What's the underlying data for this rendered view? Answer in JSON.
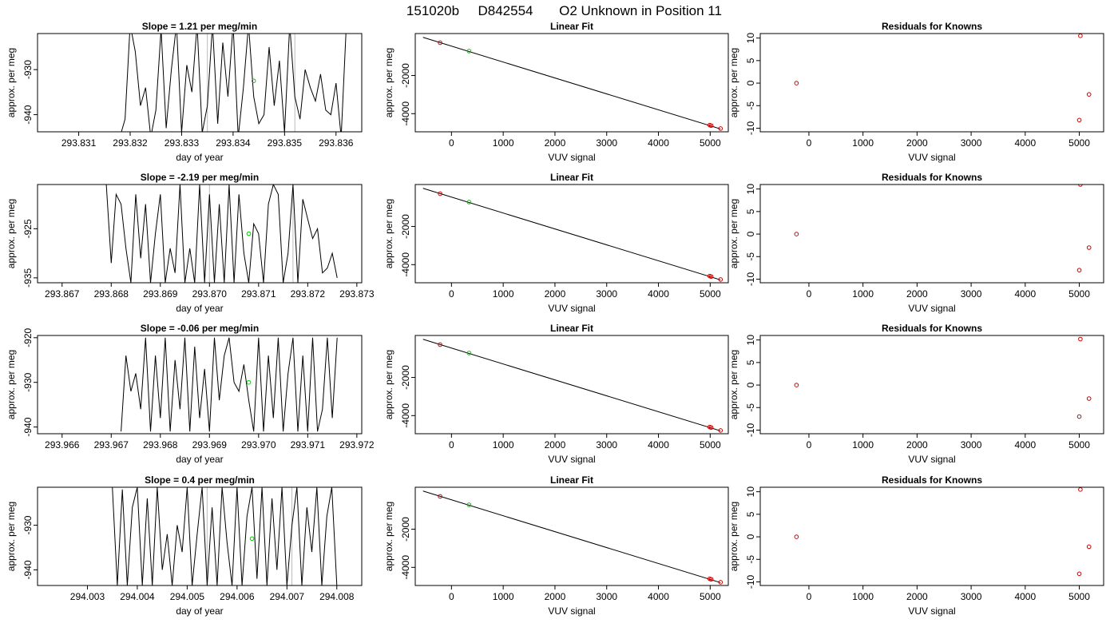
{
  "figure": {
    "title_parts": [
      "151020b",
      "D842554",
      "O2 Unknown in Position  11"
    ]
  },
  "chart_data": [
    {
      "type": "line",
      "title": "Slope =  1.21  per meg/min",
      "xlabel": "day of year",
      "ylabel": "approx. per meg",
      "xlim": [
        293.8302,
        293.8365
      ],
      "ylim": [
        -943.8,
        -922
      ],
      "xticks": [
        293.831,
        293.832,
        293.833,
        293.834,
        293.835,
        293.836
      ],
      "xtick_labels": [
        "293.831",
        "293.832",
        "293.833",
        "293.834",
        "293.835",
        "293.836"
      ],
      "yticks": [
        -930,
        -940
      ],
      "ytick_labels": [
        "-930",
        "-940"
      ],
      "vlines": [
        293.8335,
        293.8352
      ],
      "series": [
        {
          "x": [
            293.8318,
            293.8319,
            293.832,
            293.8321,
            293.8322,
            293.8323,
            293.8324,
            293.8325,
            293.8326,
            293.8327,
            293.8328,
            293.8329,
            293.833,
            293.8331,
            293.8332,
            293.8333,
            293.8334,
            293.8335,
            293.8336,
            293.8337,
            293.8338,
            293.8339,
            293.834,
            293.8341,
            293.8342,
            293.8343,
            293.8344,
            293.8345,
            293.8346,
            293.8347,
            293.8348,
            293.8349,
            293.835,
            293.8351,
            293.8352,
            293.8353,
            293.8354,
            293.8355,
            293.8356,
            293.8357,
            293.8358,
            293.8359,
            293.836,
            293.8361,
            293.8362
          ],
          "y": [
            -945,
            -941,
            -920,
            -926,
            -938,
            -934,
            -945,
            -939,
            -921,
            -943,
            -930,
            -920,
            -944,
            -929,
            -935,
            -920,
            -944,
            -938,
            -920,
            -942,
            -924,
            -936,
            -920,
            -945,
            -934,
            -920,
            -936,
            -942,
            -940,
            -925,
            -938,
            -928,
            -944,
            -920,
            -936,
            -941,
            -930,
            -934,
            -937,
            -931,
            -939,
            -940,
            -933,
            -945,
            -920
          ]
        },
        {
          "x": [
            293.8344
          ],
          "y": [
            -932.5
          ]
        }
      ]
    },
    {
      "type": "scatter",
      "title": "Linear Fit",
      "xlabel": "VUV signal",
      "ylabel": "approx. per meg",
      "xlim": [
        -700,
        5350
      ],
      "ylim": [
        -4950,
        200
      ],
      "xticks": [
        0,
        1000,
        2000,
        3000,
        4000,
        5000
      ],
      "xtick_labels": [
        "0",
        "1000",
        "2000",
        "3000",
        "4000",
        "5000"
      ],
      "yticks": [
        -2000,
        -4000
      ],
      "ytick_labels": [
        "-2000",
        "-4000"
      ],
      "fit_line": [
        [
          -550,
          0
        ],
        [
          5200,
          -4800
        ]
      ],
      "series": [
        {
          "x": [
            -220,
            4990,
            5020,
            5200
          ],
          "y": [
            -280,
            -4600,
            -4625,
            -4780
          ]
        },
        {
          "x": [
            340
          ],
          "y": [
            -720
          ]
        }
      ]
    },
    {
      "type": "scatter",
      "title": "Residuals for Knowns",
      "xlabel": "VUV signal",
      "ylabel": "",
      "xlim": [
        -900,
        5450
      ],
      "ylim": [
        -10.8,
        11
      ],
      "xticks": [
        0,
        1000,
        2000,
        3000,
        4000,
        5000
      ],
      "xtick_labels": [
        "0",
        "1000",
        "2000",
        "3000",
        "4000",
        "5000"
      ],
      "yticks": [
        10,
        5,
        0,
        -5,
        -10
      ],
      "ytick_labels": [
        "10",
        "5",
        "0",
        "-5",
        "-10"
      ],
      "series": [
        {
          "x": [
            -230,
            5020,
            5000,
            5180
          ],
          "y": [
            0,
            10.5,
            -8.2,
            -2.5
          ]
        }
      ]
    },
    {
      "type": "line",
      "title": "Slope =  -2.19  per meg/min",
      "xlabel": "day of year",
      "ylabel": "approx. per meg",
      "xlim": [
        293.8665,
        293.8731
      ],
      "ylim": [
        -936,
        -916
      ],
      "xticks": [
        293.867,
        293.868,
        293.869,
        293.87,
        293.871,
        293.872,
        293.873
      ],
      "xtick_labels": [
        "293.867",
        "293.868",
        "293.869",
        "293.870",
        "293.871",
        "293.872",
        "293.873"
      ],
      "yticks": [
        -925,
        -935
      ],
      "ytick_labels": [
        "-925",
        "-935"
      ],
      "vlines": [
        293.87,
        293.8717
      ],
      "series": [
        {
          "x": [
            293.8679,
            293.868,
            293.8681,
            293.8682,
            293.8683,
            293.8684,
            293.8685,
            293.8686,
            293.8687,
            293.8688,
            293.8689,
            293.869,
            293.8691,
            293.8692,
            293.8693,
            293.8694,
            293.8695,
            293.8696,
            293.8697,
            293.8698,
            293.8699,
            293.87,
            293.8701,
            293.8702,
            293.8703,
            293.8704,
            293.8705,
            293.8706,
            293.8707,
            293.8708,
            293.8709,
            293.871,
            293.8711,
            293.8712,
            293.8713,
            293.8714,
            293.8715,
            293.8716,
            293.8717,
            293.8718,
            293.8719,
            293.872,
            293.8721,
            293.8722,
            293.8723,
            293.8724,
            293.8725,
            293.8726
          ],
          "y": [
            -916,
            -932,
            -918,
            -920,
            -929,
            -936,
            -918,
            -931,
            -920,
            -936,
            -926,
            -918,
            -936,
            -929,
            -934,
            -916,
            -936,
            -929,
            -936,
            -916,
            -936,
            -918,
            -936,
            -920,
            -936,
            -916,
            -936,
            -918,
            -930,
            -936,
            -924,
            -926,
            -936,
            -920,
            -916,
            -918,
            -936,
            -930,
            -916,
            -936,
            -919,
            -923,
            -927,
            -925,
            -934,
            -933,
            -930,
            -935
          ]
        },
        {
          "x": [
            293.8708
          ],
          "y": [
            -926
          ]
        }
      ]
    },
    {
      "type": "scatter",
      "title": "Linear Fit",
      "xlabel": "VUV signal",
      "ylabel": "approx. per meg",
      "xlim": [
        -700,
        5350
      ],
      "ylim": [
        -4950,
        200
      ],
      "xticks": [
        0,
        1000,
        2000,
        3000,
        4000,
        5000
      ],
      "xtick_labels": [
        "0",
        "1000",
        "2000",
        "3000",
        "4000",
        "5000"
      ],
      "yticks": [
        -2000,
        -4000
      ],
      "ytick_labels": [
        "-2000",
        "-4000"
      ],
      "fit_line": [
        [
          -550,
          0
        ],
        [
          5200,
          -4800
        ]
      ],
      "series": [
        {
          "x": [
            -220,
            4990,
            5020,
            5200
          ],
          "y": [
            -280,
            -4600,
            -4625,
            -4780
          ]
        },
        {
          "x": [
            340
          ],
          "y": [
            -720
          ]
        }
      ]
    },
    {
      "type": "scatter",
      "title": "Residuals for Knowns",
      "xlabel": "VUV signal",
      "ylabel": "",
      "xlim": [
        -900,
        5450
      ],
      "ylim": [
        -10.8,
        11
      ],
      "xticks": [
        0,
        1000,
        2000,
        3000,
        4000,
        5000
      ],
      "xtick_labels": [
        "0",
        "1000",
        "2000",
        "3000",
        "4000",
        "5000"
      ],
      "yticks": [
        10,
        5,
        0,
        -5,
        -10
      ],
      "ytick_labels": [
        "10",
        "5",
        "0",
        "-5",
        "-10"
      ],
      "series": [
        {
          "x": [
            -230,
            5020,
            5000,
            5180
          ],
          "y": [
            0,
            11,
            -8,
            -3
          ]
        }
      ]
    },
    {
      "type": "line",
      "title": "Slope =  -0.06  per meg/min",
      "xlabel": "day of year",
      "ylabel": "approx. per meg",
      "xlim": [
        293.9655,
        293.9721
      ],
      "ylim": [
        -941.5,
        -919.5
      ],
      "xticks": [
        293.966,
        293.967,
        293.968,
        293.969,
        293.97,
        293.971,
        293.972
      ],
      "xtick_labels": [
        "293.966",
        "293.967",
        "293.968",
        "293.969",
        "293.970",
        "293.971",
        "293.972"
      ],
      "yticks": [
        -920,
        -930,
        -940
      ],
      "ytick_labels": [
        "-920",
        "-930",
        "-940"
      ],
      "vlines": [],
      "series": [
        {
          "x": [
            293.9672,
            293.9673,
            293.9674,
            293.9675,
            293.9676,
            293.9677,
            293.9678,
            293.9679,
            293.968,
            293.9681,
            293.9682,
            293.9683,
            293.9684,
            293.9685,
            293.9686,
            293.9687,
            293.9688,
            293.9689,
            293.969,
            293.9691,
            293.9692,
            293.9693,
            293.9694,
            293.9695,
            293.9696,
            293.9697,
            293.9698,
            293.9699,
            293.97,
            293.9701,
            293.9702,
            293.9703,
            293.9704,
            293.9705,
            293.9706,
            293.9707,
            293.9708,
            293.9709,
            293.971,
            293.9711,
            293.9712,
            293.9713,
            293.9714,
            293.9715,
            293.9716
          ],
          "y": [
            -941,
            -924,
            -932,
            -928,
            -936,
            -920,
            -941,
            -924,
            -938,
            -920,
            -941,
            -925,
            -936,
            -920,
            -941,
            -922,
            -938,
            -927,
            -941,
            -920,
            -934,
            -924,
            -920,
            -930,
            -932,
            -926,
            -934,
            -941,
            -920,
            -941,
            -924,
            -938,
            -920,
            -941,
            -928,
            -920,
            -941,
            -924,
            -941,
            -920,
            -941,
            -936,
            -920,
            -938,
            -920
          ]
        },
        {
          "x": [
            293.9698
          ],
          "y": [
            -930
          ]
        }
      ]
    },
    {
      "type": "scatter",
      "title": "Linear Fit",
      "xlabel": "VUV signal",
      "ylabel": "approx. per meg",
      "xlim": [
        -700,
        5350
      ],
      "ylim": [
        -4950,
        200
      ],
      "xticks": [
        0,
        1000,
        2000,
        3000,
        4000,
        5000
      ],
      "xtick_labels": [
        "0",
        "1000",
        "2000",
        "3000",
        "4000",
        "5000"
      ],
      "yticks": [
        -2000,
        -4000
      ],
      "ytick_labels": [
        "-2000",
        "-4000"
      ],
      "fit_line": [
        [
          -550,
          0
        ],
        [
          5200,
          -4800
        ]
      ],
      "series": [
        {
          "x": [
            -220,
            4990,
            5020,
            5200
          ],
          "y": [
            -280,
            -4600,
            -4625,
            -4780
          ]
        },
        {
          "x": [
            340
          ],
          "y": [
            -720
          ]
        }
      ]
    },
    {
      "type": "scatter",
      "title": "Residuals for Knowns",
      "xlabel": "VUV signal",
      "ylabel": "",
      "xlim": [
        -900,
        5450
      ],
      "ylim": [
        -10.8,
        11
      ],
      "xticks": [
        0,
        1000,
        2000,
        3000,
        4000,
        5000
      ],
      "xtick_labels": [
        "0",
        "1000",
        "2000",
        "3000",
        "4000",
        "5000"
      ],
      "yticks": [
        10,
        5,
        0,
        -5,
        -10
      ],
      "ytick_labels": [
        "10",
        "5",
        "0",
        "-5",
        "-10"
      ],
      "series": [
        {
          "x": [
            -230,
            5020,
            5000,
            5180
          ],
          "y": [
            0,
            10.2,
            -7,
            -3
          ]
        }
      ]
    },
    {
      "type": "line",
      "title": "Slope =  0.4  per meg/min",
      "xlabel": "day of year",
      "ylabel": "approx. per meg",
      "xlim": [
        294.002,
        294.0085
      ],
      "ylim": [
        -943.5,
        -921.5
      ],
      "xticks": [
        294.003,
        294.004,
        294.005,
        294.006,
        294.007,
        294.008
      ],
      "xtick_labels": [
        "294.003",
        "294.004",
        "294.005",
        "294.006",
        "294.007",
        "294.008"
      ],
      "yticks": [
        -930,
        -940
      ],
      "ytick_labels": [
        "-930",
        "-940"
      ],
      "vlines": [
        294.0054,
        294.0071
      ],
      "series": [
        {
          "x": [
            294.0035,
            294.0036,
            294.0037,
            294.0038,
            294.0039,
            294.004,
            294.0041,
            294.0042,
            294.0043,
            294.0044,
            294.0045,
            294.0046,
            294.0047,
            294.0048,
            294.0049,
            294.005,
            294.0051,
            294.0052,
            294.0053,
            294.0054,
            294.0055,
            294.0056,
            294.0057,
            294.0058,
            294.0059,
            294.006,
            294.0061,
            294.0062,
            294.0063,
            294.0064,
            294.0065,
            294.0066,
            294.0067,
            294.0068,
            294.0069,
            294.007,
            294.0071,
            294.0072,
            294.0073,
            294.0074,
            294.0075,
            294.0076,
            294.0077,
            294.0078,
            294.0079,
            294.008
          ],
          "y": [
            -921.5,
            -943.5,
            -922,
            -943.5,
            -926,
            -921.5,
            -943.5,
            -924,
            -943.5,
            -921.5,
            -940,
            -932,
            -943.5,
            -930,
            -936,
            -921.5,
            -943.5,
            -932,
            -921.5,
            -943.5,
            -926,
            -943.5,
            -921.5,
            -934,
            -943.5,
            -921.5,
            -943.5,
            -928,
            -921.5,
            -942,
            -921.5,
            -943.5,
            -924,
            -940,
            -921.5,
            -943.5,
            -930,
            -921.5,
            -943.5,
            -926,
            -936,
            -921.5,
            -943.5,
            -928,
            -921.5,
            -943.5
          ]
        },
        {
          "x": [
            294.0063
          ],
          "y": [
            -933
          ]
        }
      ]
    },
    {
      "type": "scatter",
      "title": "Linear Fit",
      "xlabel": "VUV signal",
      "ylabel": "approx. per meg",
      "xlim": [
        -700,
        5350
      ],
      "ylim": [
        -4950,
        200
      ],
      "xticks": [
        0,
        1000,
        2000,
        3000,
        4000,
        5000
      ],
      "xtick_labels": [
        "0",
        "1000",
        "2000",
        "3000",
        "4000",
        "5000"
      ],
      "yticks": [
        -2000,
        -4000
      ],
      "ytick_labels": [
        "-2000",
        "-4000"
      ],
      "fit_line": [
        [
          -550,
          0
        ],
        [
          5200,
          -4800
        ]
      ],
      "series": [
        {
          "x": [
            -220,
            4990,
            5020,
            5200
          ],
          "y": [
            -280,
            -4600,
            -4625,
            -4780
          ]
        },
        {
          "x": [
            340
          ],
          "y": [
            -720
          ]
        }
      ]
    },
    {
      "type": "scatter",
      "title": "Residuals for Knowns",
      "xlabel": "VUV signal",
      "ylabel": "",
      "xlim": [
        -900,
        5450
      ],
      "ylim": [
        -10.8,
        11
      ],
      "xticks": [
        0,
        1000,
        2000,
        3000,
        4000,
        5000
      ],
      "xtick_labels": [
        "0",
        "1000",
        "2000",
        "3000",
        "4000",
        "5000"
      ],
      "yticks": [
        10,
        5,
        0,
        -5,
        -10
      ],
      "ytick_labels": [
        "10",
        "5",
        "0",
        "-5",
        "-10"
      ],
      "series": [
        {
          "x": [
            -230,
            5020,
            5000,
            5180
          ],
          "y": [
            0,
            10.5,
            -8.2,
            -2.2
          ]
        }
      ]
    }
  ],
  "residual_ylabel": "approx. per meg",
  "colors": {
    "known": "#cc0000",
    "unknown": "#00cc00",
    "vline": "#bbbbbb",
    "line": "#000000"
  }
}
